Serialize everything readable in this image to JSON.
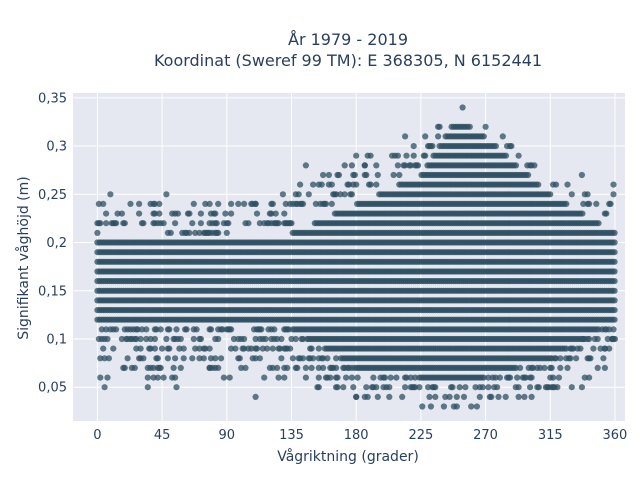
{
  "chart_data": {
    "type": "scatter",
    "title_line1": "År 1979 - 2019",
    "title_line2": "Koordinat (Sweref 99 TM): E 368305, N 6152441",
    "xlabel": "Vågriktning (grader)",
    "ylabel": "Signifikant våghöjd (m)",
    "xlim": [
      -17,
      367
    ],
    "ylim": [
      0.015,
      0.355
    ],
    "x_ticks": [
      0,
      45,
      90,
      135,
      180,
      225,
      270,
      315,
      360
    ],
    "y_ticks": [
      0.05,
      0.1,
      0.15,
      0.2,
      0.25,
      0.3,
      0.35
    ],
    "y_tick_labels": [
      "0,05",
      "0,1",
      "0,15",
      "0,2",
      "0,25",
      "0,3",
      "0,35"
    ],
    "grid": true,
    "marker_color": "#2f5062",
    "plot_background": "#e5e8f1",
    "y_resolution": 0.01,
    "dense_envelope": [
      {
        "x": 0,
        "ymin": 0.12,
        "ymax": 0.21
      },
      {
        "x": 45,
        "ymin": 0.12,
        "ymax": 0.2
      },
      {
        "x": 90,
        "ymin": 0.12,
        "ymax": 0.2
      },
      {
        "x": 135,
        "ymin": 0.11,
        "ymax": 0.21
      },
      {
        "x": 180,
        "ymin": 0.07,
        "ymax": 0.24
      },
      {
        "x": 225,
        "ymin": 0.06,
        "ymax": 0.27
      },
      {
        "x": 250,
        "ymin": 0.06,
        "ymax": 0.33
      },
      {
        "x": 270,
        "ymin": 0.06,
        "ymax": 0.31
      },
      {
        "x": 315,
        "ymin": 0.08,
        "ymax": 0.25
      },
      {
        "x": 360,
        "ymin": 0.12,
        "ymax": 0.21
      }
    ],
    "outer_envelope": [
      {
        "x": 0,
        "ymin": 0.06,
        "ymax": 0.24
      },
      {
        "x": 45,
        "ymin": 0.05,
        "ymax": 0.25
      },
      {
        "x": 90,
        "ymin": 0.06,
        "ymax": 0.24
      },
      {
        "x": 135,
        "ymin": 0.05,
        "ymax": 0.26
      },
      {
        "x": 180,
        "ymin": 0.04,
        "ymax": 0.29
      },
      {
        "x": 225,
        "ymin": 0.03,
        "ymax": 0.31
      },
      {
        "x": 250,
        "ymin": 0.03,
        "ymax": 0.34
      },
      {
        "x": 270,
        "ymin": 0.03,
        "ymax": 0.32
      },
      {
        "x": 315,
        "ymin": 0.04,
        "ymax": 0.27
      },
      {
        "x": 360,
        "ymin": 0.06,
        "ymax": 0.26
      }
    ],
    "notable_points": [
      {
        "x": 1,
        "y": 0.24
      },
      {
        "x": 4,
        "y": 0.24
      },
      {
        "x": 9,
        "y": 0.25
      },
      {
        "x": 23,
        "y": 0.24
      },
      {
        "x": 29,
        "y": 0.24
      },
      {
        "x": 48,
        "y": 0.25
      },
      {
        "x": 64,
        "y": 0.23
      },
      {
        "x": 84,
        "y": 0.24
      },
      {
        "x": 110,
        "y": 0.24
      },
      {
        "x": 138,
        "y": 0.25
      },
      {
        "x": 145,
        "y": 0.28
      },
      {
        "x": 157,
        "y": 0.27
      },
      {
        "x": 163,
        "y": 0.26
      },
      {
        "x": 180,
        "y": 0.29
      },
      {
        "x": 186,
        "y": 0.28
      },
      {
        "x": 205,
        "y": 0.29
      },
      {
        "x": 214,
        "y": 0.31
      },
      {
        "x": 230,
        "y": 0.3
      },
      {
        "x": 254,
        "y": 0.34
      },
      {
        "x": 282,
        "y": 0.31
      },
      {
        "x": 293,
        "y": 0.29
      },
      {
        "x": 299,
        "y": 0.28
      },
      {
        "x": 337,
        "y": 0.27
      },
      {
        "x": 359,
        "y": 0.26
      },
      {
        "x": 5,
        "y": 0.05
      },
      {
        "x": 2,
        "y": 0.06
      },
      {
        "x": 35,
        "y": 0.05
      },
      {
        "x": 55,
        "y": 0.05
      },
      {
        "x": 92,
        "y": 0.06
      },
      {
        "x": 110,
        "y": 0.04
      },
      {
        "x": 78,
        "y": 0.07
      },
      {
        "x": 153,
        "y": 0.05
      },
      {
        "x": 180,
        "y": 0.04
      },
      {
        "x": 226,
        "y": 0.03
      },
      {
        "x": 232,
        "y": 0.03
      },
      {
        "x": 248,
        "y": 0.03
      },
      {
        "x": 293,
        "y": 0.04
      },
      {
        "x": 318,
        "y": 0.05
      },
      {
        "x": 330,
        "y": 0.05
      },
      {
        "x": 342,
        "y": 0.06
      },
      {
        "x": 358,
        "y": 0.1
      },
      {
        "x": 353,
        "y": 0.09
      }
    ]
  }
}
